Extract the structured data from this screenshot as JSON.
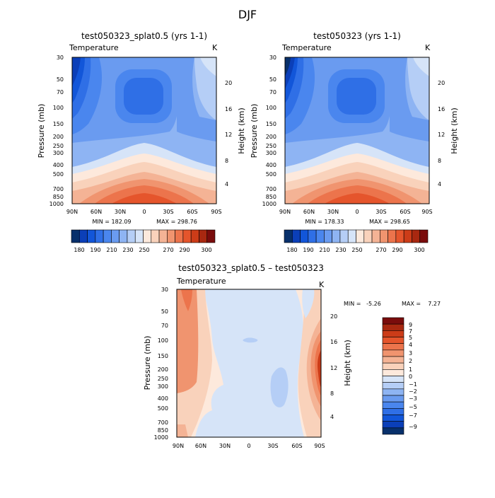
{
  "page": {
    "season_title": "DJF"
  },
  "colorbar_fills": {
    "abs": [
      "#08306b",
      "#0b3fb8",
      "#1256d9",
      "#2f6fe6",
      "#4a86ee",
      "#6a9bf0",
      "#8eb4f3",
      "#b5cef6",
      "#d6e4f8",
      "#fde9dc",
      "#f9d2bb",
      "#f4b395",
      "#f0946f",
      "#ec744c",
      "#e5552c",
      "#cc3c18",
      "#a82810",
      "#7a0c0c"
    ],
    "diff": [
      "#7a0c0c",
      "#a82810",
      "#cc3c18",
      "#e5552c",
      "#ec744c",
      "#f0946f",
      "#f4b395",
      "#f9d2bb",
      "#fde9dc",
      "#d6e4f8",
      "#b5cef6",
      "#8eb4f3",
      "#6a9bf0",
      "#4a86ee",
      "#2f6fe6",
      "#1256d9",
      "#0b3fb8",
      "#08306b"
    ]
  },
  "chart_data": [
    {
      "type": "contour",
      "panel": "top-left",
      "title": "test050323_splat0.5 (yrs 1-1)",
      "subtitle_left": "Temperature",
      "subtitle_right": "K",
      "xlabel": "",
      "ylabel": "Pressure (mb)",
      "ylabel_right": "Height (km)",
      "x_ticks": [
        "90N",
        "60N",
        "30N",
        "0",
        "30S",
        "60S",
        "90S"
      ],
      "y_ticks": [
        "30",
        "50",
        "70",
        "100",
        "150",
        "200",
        "250",
        "300",
        "400",
        "500",
        "700",
        "850",
        "1000"
      ],
      "y_right_ticks": [
        "20",
        "16",
        "12",
        "8",
        "4"
      ],
      "stats": {
        "min_label": "MIN = 182.09",
        "max_label": "MAX = 298.76",
        "min": 182.09,
        "max": 298.76
      },
      "colorbar_labels": [
        "180",
        "190",
        "210",
        "230",
        "250",
        "270",
        "290",
        "300"
      ]
    },
    {
      "type": "contour",
      "panel": "top-right",
      "title": "test050323 (yrs 1-1)",
      "subtitle_left": "Temperature",
      "subtitle_right": "K",
      "xlabel": "",
      "ylabel": "Pressure (mb)",
      "ylabel_right": "Height (km)",
      "x_ticks": [
        "90N",
        "60N",
        "30N",
        "0",
        "30S",
        "60S",
        "90S"
      ],
      "y_ticks": [
        "30",
        "50",
        "70",
        "100",
        "150",
        "200",
        "250",
        "300",
        "400",
        "500",
        "700",
        "850",
        "1000"
      ],
      "y_right_ticks": [
        "20",
        "16",
        "12",
        "8",
        "4"
      ],
      "stats": {
        "min_label": "MIN = 178.33",
        "max_label": "MAX = 298.65",
        "min": 178.33,
        "max": 298.65
      },
      "colorbar_labels": [
        "180",
        "190",
        "210",
        "230",
        "250",
        "270",
        "290",
        "300"
      ]
    },
    {
      "type": "contour",
      "panel": "bottom-center",
      "title": "test050323_splat0.5 – test050323",
      "subtitle_left": "Temperature",
      "subtitle_right": "K",
      "xlabel": "",
      "ylabel": "Pressure (mb)",
      "ylabel_right": "Height (km)",
      "x_ticks": [
        "90N",
        "60N",
        "30N",
        "0",
        "30S",
        "60S",
        "90S"
      ],
      "y_ticks": [
        "30",
        "50",
        "70",
        "100",
        "150",
        "200",
        "250",
        "300",
        "400",
        "500",
        "700",
        "850",
        "1000"
      ],
      "y_right_ticks": [
        "20",
        "16",
        "12",
        "8",
        "4"
      ],
      "stats": {
        "min_text": "MIN =   -5.26",
        "max_text": "MAX =    7.27",
        "min": -5.26,
        "max": 7.27
      },
      "colorbar_labels": [
        "9",
        "7",
        "5",
        "4",
        "3",
        "2",
        "1",
        "0",
        "−1",
        "−2",
        "−3",
        "−5",
        "−7",
        "−9"
      ]
    }
  ]
}
